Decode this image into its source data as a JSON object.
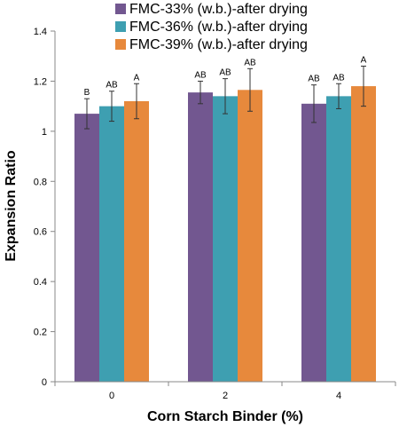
{
  "chart_data": {
    "type": "bar",
    "categories": [
      "0",
      "2",
      "4"
    ],
    "series": [
      {
        "name": "FMC-33% (w.b.)-after drying",
        "color": "#725790",
        "values": [
          1.07,
          1.155,
          1.11
        ],
        "errors": [
          0.06,
          0.045,
          0.075
        ],
        "labels": [
          "B",
          "AB",
          "AB"
        ]
      },
      {
        "name": "FMC-36% (w.b.)-after drying",
        "color": "#3e9fb1",
        "values": [
          1.1,
          1.14,
          1.14
        ],
        "errors": [
          0.06,
          0.07,
          0.05
        ],
        "labels": [
          "AB",
          "AB",
          "AB"
        ]
      },
      {
        "name": "FMC-39% (w.b.)-after drying",
        "color": "#e7893c",
        "values": [
          1.12,
          1.165,
          1.18
        ],
        "errors": [
          0.07,
          0.085,
          0.08
        ],
        "labels": [
          "A",
          "AB",
          "A"
        ]
      }
    ],
    "xlabel": "Corn Starch Binder (%)",
    "ylabel": "Expansion Ratio",
    "ylim": [
      0,
      1.4
    ],
    "yticks": [
      "0",
      "0.2",
      "0.4",
      "0.6",
      "0.8",
      "1",
      "1.2",
      "1.4"
    ],
    "grid": false,
    "legend_position": "top"
  }
}
